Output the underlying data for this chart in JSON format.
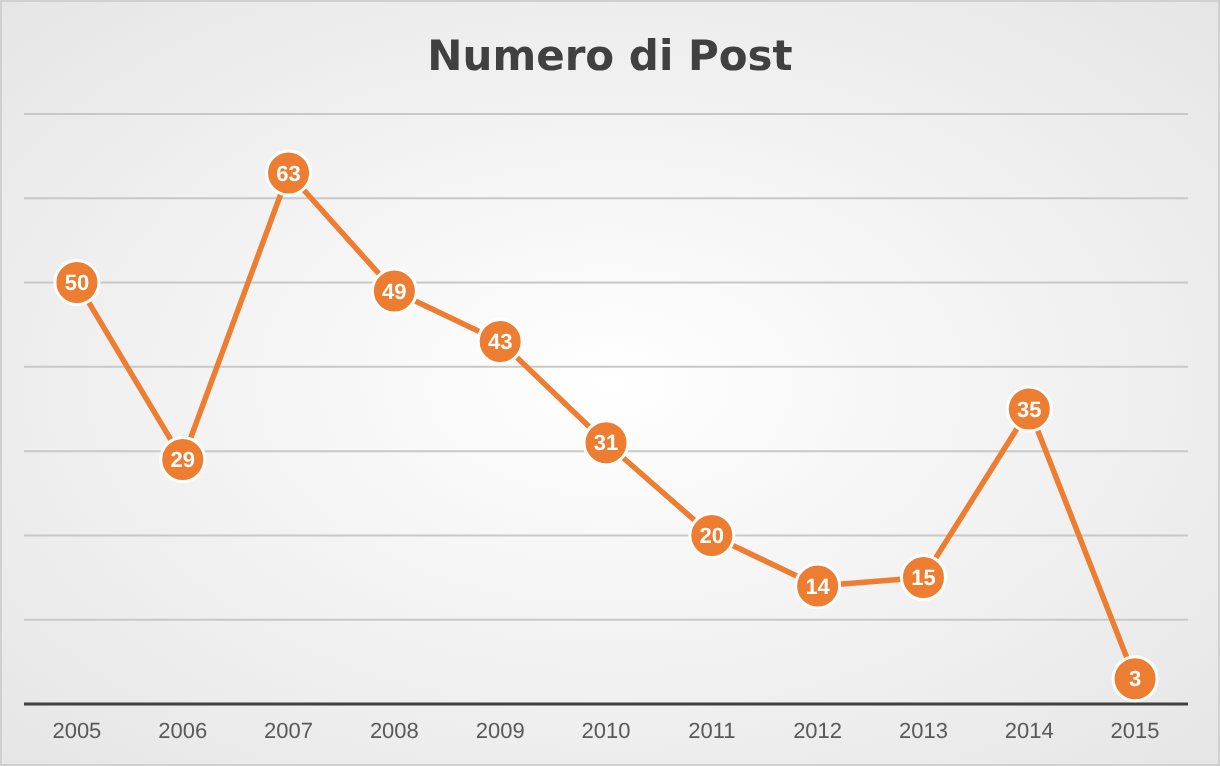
{
  "chart_data": {
    "type": "line",
    "title": "Numero di Post",
    "categories": [
      "2005",
      "2006",
      "2007",
      "2008",
      "2009",
      "2010",
      "2011",
      "2012",
      "2013",
      "2014",
      "2015"
    ],
    "series": [
      {
        "color": "#ed7d31",
        "values": [
          50,
          29,
          63,
          49,
          43,
          31,
          20,
          14,
          15,
          35,
          3
        ]
      }
    ],
    "ylim": [
      0,
      70
    ],
    "yticks": [
      {
        "value": 0,
        "label": null
      },
      {
        "value": 10,
        "label": null
      },
      {
        "value": 20,
        "label": null
      },
      {
        "value": 30,
        "label": null
      },
      {
        "value": 40,
        "label": null
      },
      {
        "value": 50,
        "label": null
      },
      {
        "value": 60,
        "label": null
      },
      {
        "value": 70,
        "label": null
      }
    ],
    "tick_labels": "x",
    "grid": "y",
    "data_labels": true,
    "marker": "circle",
    "line_style": "solid"
  }
}
